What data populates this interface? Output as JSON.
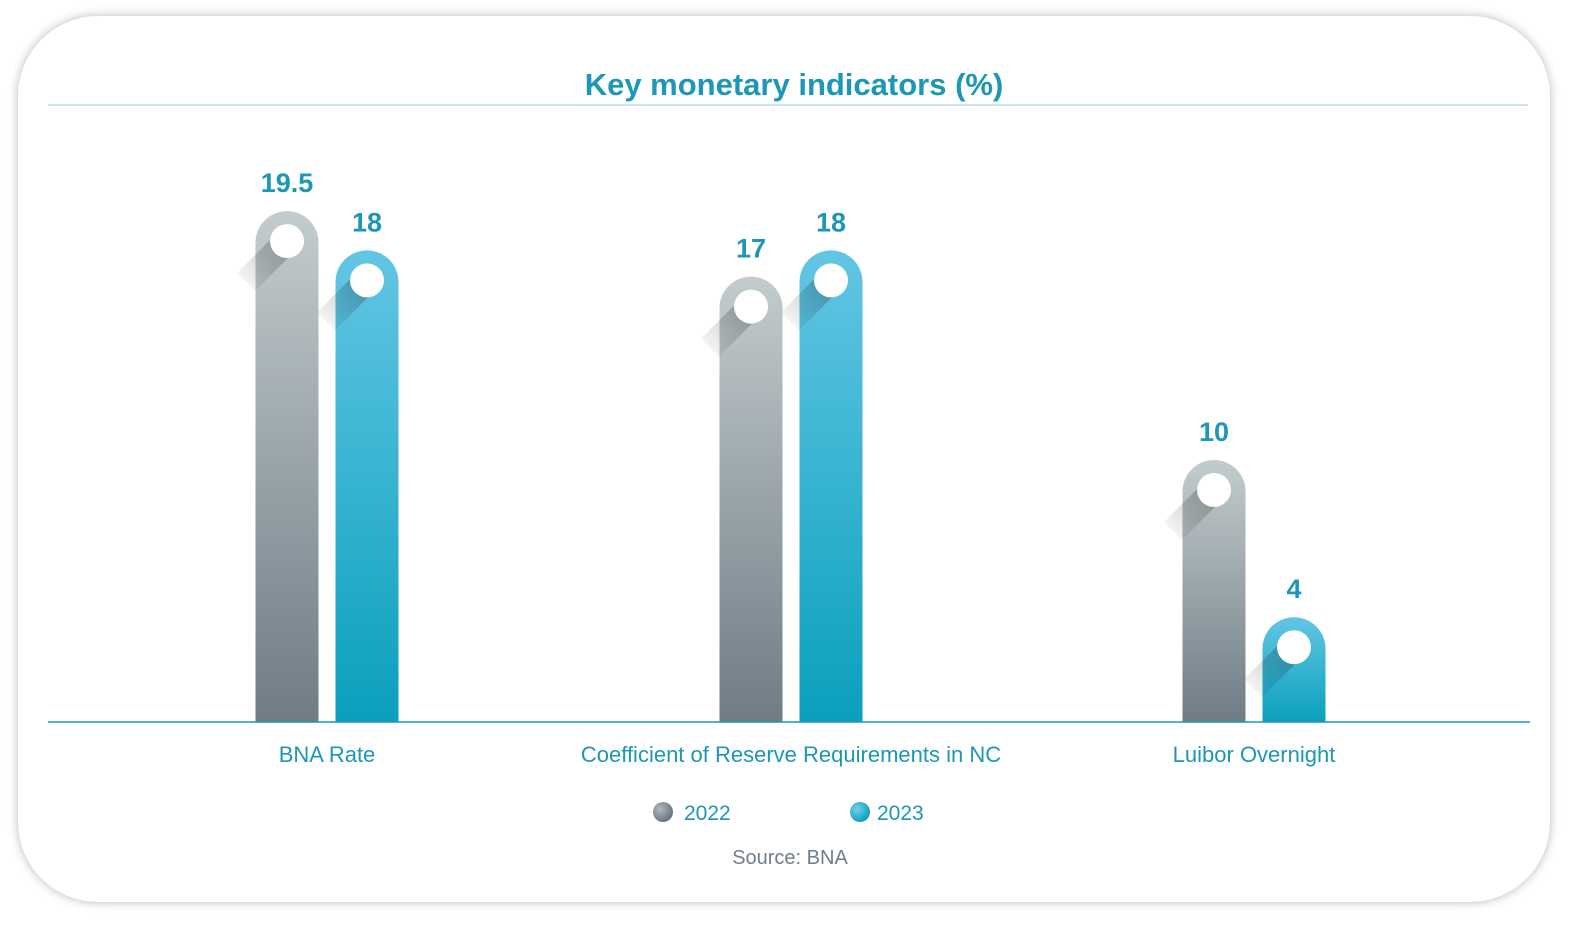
{
  "chart_data": {
    "type": "bar",
    "title": "Key monetary indicators (%)",
    "categories": [
      "BNA Rate",
      "Coefficient of Reserve Requirements in NC",
      "Luibor Overnight"
    ],
    "series": [
      {
        "name": "2022",
        "values": [
          19.5,
          17,
          10
        ],
        "color": "#7a8791"
      },
      {
        "name": "2023",
        "values": [
          18,
          18,
          4
        ],
        "color": "#1aa6c8"
      }
    ],
    "value_labels": [
      [
        "19.5",
        "17",
        "10"
      ],
      [
        "18",
        "18",
        "4"
      ]
    ],
    "ylim": [
      0,
      20
    ],
    "grid": false,
    "legend": "bottom-center",
    "source": "Source: BNA"
  },
  "colors": {
    "accent": "#1c97b5",
    "series_2022_top": "#c3cccd",
    "series_2022_bottom": "#6f7c86",
    "series_2023_top": "#62c6e4",
    "series_2023_bottom": "#0aa0bd"
  }
}
